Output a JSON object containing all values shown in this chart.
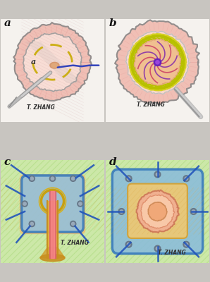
{
  "fig_bg": "#c8c5c0",
  "panel_a_bg": "#f2efea",
  "panel_b_bg": "#f2efea",
  "panel_c_bg": "#d4e8b8",
  "panel_d_bg": "#d4e8b8",
  "signature": "T. ZHANG",
  "labels": [
    "a",
    "b",
    "c",
    "d"
  ]
}
